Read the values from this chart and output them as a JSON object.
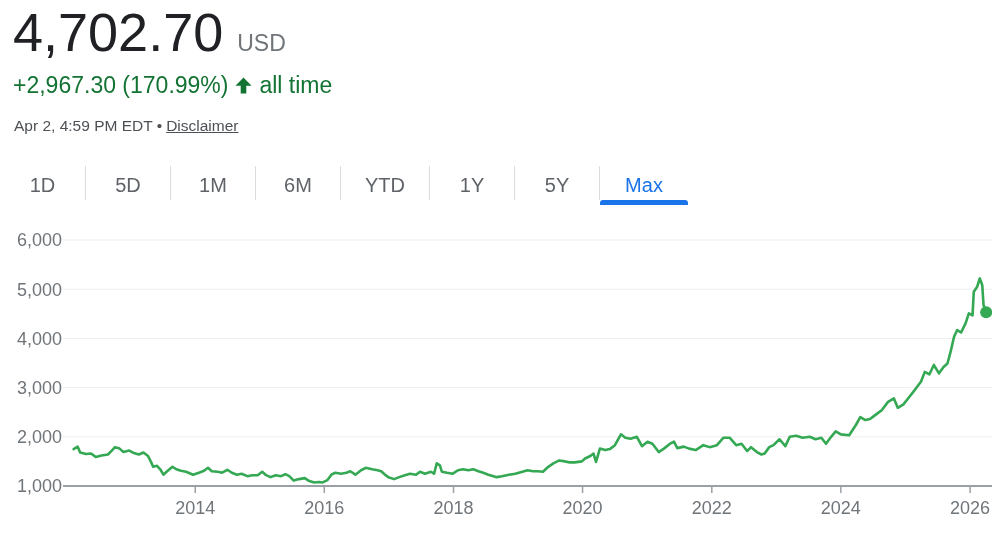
{
  "chart_data": {
    "type": "line",
    "title": "4,702.70",
    "subtitle": "+2,967.30 (170.99%)",
    "annotations": [
      "USD",
      "all time",
      "Apr 2, 4:59 PM EDT •",
      "Disclaimer",
      "1D",
      "5D",
      "1M",
      "6M",
      "YTD",
      "1Y",
      "5Y",
      "Max"
    ],
    "x": [
      "2012-02-13",
      "2012-03-07",
      "2012-03-21",
      "2012-04-23",
      "2012-05-22",
      "2012-06-17",
      "2012-07-20",
      "2012-08-25",
      "2012-09-16",
      "2012-10-04",
      "2012-10-30",
      "2012-11-21",
      "2012-12-24",
      "2013-01-19",
      "2013-02-16",
      "2013-03-14",
      "2013-04-09",
      "2013-04-27",
      "2013-05-08",
      "2013-05-30",
      "2013-06-17",
      "2013-07-05",
      "2013-07-23",
      "2013-08-25",
      "2013-09-16",
      "2013-10-12",
      "2013-11-10",
      "2013-12-20",
      "2014-01-22",
      "2014-02-20",
      "2014-03-14",
      "2014-04-05",
      "2014-05-08",
      "2014-06-02",
      "2014-07-02",
      "2014-07-27",
      "2014-08-25",
      "2014-09-20",
      "2014-10-23",
      "2014-11-21",
      "2014-12-20",
      "2015-01-15",
      "2015-02-06",
      "2015-03-03",
      "2015-04-01",
      "2015-05-01",
      "2015-05-26",
      "2015-06-17",
      "2015-07-12",
      "2015-08-11",
      "2015-09-13",
      "2015-10-08",
      "2015-11-06",
      "2015-12-02",
      "2015-12-20",
      "2016-01-19",
      "2016-02-10",
      "2016-03-03",
      "2016-04-05",
      "2016-05-05",
      "2016-05-27",
      "2016-06-25",
      "2016-07-27",
      "2016-08-22",
      "2016-09-28",
      "2016-10-28",
      "2016-11-18",
      "2016-12-10",
      "2016-12-28",
      "2017-01-30",
      "2017-02-28",
      "2017-04-01",
      "2017-04-30",
      "2017-06-03",
      "2017-06-25",
      "2017-07-24",
      "2017-08-26",
      "2017-09-13",
      "2017-09-28",
      "2017-10-16",
      "2017-10-27",
      "2017-11-25",
      "2017-12-28",
      "2018-01-26",
      "2018-02-24",
      "2018-03-26",
      "2018-04-23",
      "2018-05-22",
      "2018-06-18",
      "2018-07-17",
      "2018-08-15",
      "2018-09-02",
      "2018-10-02",
      "2018-11-10",
      "2018-12-16",
      "2019-01-26",
      "2019-02-24",
      "2019-03-26",
      "2019-04-23",
      "2019-05-22",
      "2019-06-21",
      "2019-07-20",
      "2019-08-22",
      "2019-09-24",
      "2019-10-20",
      "2019-11-18",
      "2019-12-28",
      "2020-01-15",
      "2020-02-14",
      "2020-03-03",
      "2020-03-17",
      "2020-04-08",
      "2020-05-08",
      "2020-06-03",
      "2020-07-02",
      "2020-08-05",
      "2020-08-30",
      "2020-09-28",
      "2020-11-03",
      "2020-12-02",
      "2021-01-02",
      "2021-01-30",
      "2021-03-07",
      "2021-04-05",
      "2021-05-10",
      "2021-06-01",
      "2021-06-20",
      "2021-07-27",
      "2021-08-25",
      "2021-10-02",
      "2021-11-14",
      "2021-12-20",
      "2022-01-30",
      "2022-03-07",
      "2022-04-13",
      "2022-05-19",
      "2022-06-18",
      "2022-07-20",
      "2022-08-11",
      "2022-09-13",
      "2022-10-09",
      "2022-10-27",
      "2022-11-22",
      "2022-12-16",
      "2023-01-19",
      "2023-02-21",
      "2023-03-18",
      "2023-04-23",
      "2023-05-30",
      "2023-07-09",
      "2023-08-11",
      "2023-09-13",
      "2023-10-09",
      "2023-11-07",
      "2023-12-03",
      "2024-01-01",
      "2024-02-17",
      "2024-03-26",
      "2024-04-20",
      "2024-05-19",
      "2024-06-14",
      "2024-07-13",
      "2024-08-19",
      "2024-09-24",
      "2024-10-27",
      "2024-11-18",
      "2024-12-20",
      "2025-01-22",
      "2025-02-28",
      "2025-03-29",
      "2025-04-20",
      "2025-05-16",
      "2025-06-10",
      "2025-07-09",
      "2025-08-04",
      "2025-08-26",
      "2025-09-13",
      "2025-10-02",
      "2025-10-20",
      "2025-11-11",
      "2025-12-07",
      "2025-12-25",
      "2026-01-15",
      "2026-01-22",
      "2026-02-10",
      "2026-02-25",
      "2026-03-11",
      "2026-03-18",
      "2026-04-02"
    ],
    "series": [
      {
        "color": "#34a853",
        "values": [
          1750,
          1800,
          1680,
          1650,
          1660,
          1590,
          1620,
          1640,
          1720,
          1790,
          1760,
          1690,
          1720,
          1670,
          1640,
          1680,
          1610,
          1480,
          1390,
          1410,
          1340,
          1230,
          1290,
          1390,
          1340,
          1310,
          1290,
          1230,
          1270,
          1310,
          1370,
          1300,
          1290,
          1270,
          1330,
          1270,
          1230,
          1250,
          1200,
          1220,
          1220,
          1290,
          1220,
          1180,
          1220,
          1200,
          1240,
          1200,
          1110,
          1140,
          1160,
          1100,
          1070,
          1080,
          1070,
          1120,
          1230,
          1270,
          1250,
          1270,
          1300,
          1230,
          1320,
          1370,
          1340,
          1320,
          1300,
          1230,
          1180,
          1140,
          1180,
          1220,
          1250,
          1230,
          1290,
          1250,
          1290,
          1250,
          1460,
          1420,
          1290,
          1270,
          1250,
          1320,
          1340,
          1320,
          1340,
          1300,
          1270,
          1230,
          1200,
          1180,
          1200,
          1230,
          1250,
          1290,
          1320,
          1300,
          1300,
          1290,
          1390,
          1460,
          1520,
          1500,
          1480,
          1480,
          1500,
          1560,
          1610,
          1660,
          1490,
          1760,
          1730,
          1750,
          1830,
          2050,
          1980,
          1960,
          2000,
          1810,
          1900,
          1860,
          1690,
          1760,
          1860,
          1900,
          1770,
          1800,
          1760,
          1730,
          1830,
          1790,
          1830,
          1980,
          1980,
          1830,
          1860,
          1710,
          1790,
          1690,
          1640,
          1660,
          1790,
          1830,
          1950,
          1810,
          2000,
          2020,
          1980,
          2000,
          1950,
          1980,
          1860,
          2000,
          2110,
          2050,
          2030,
          2240,
          2400,
          2340,
          2360,
          2440,
          2540,
          2710,
          2780,
          2590,
          2660,
          2810,
          2980,
          3120,
          3320,
          3270,
          3460,
          3290,
          3420,
          3490,
          3730,
          4030,
          4170,
          4120,
          4310,
          4510,
          4470,
          4950,
          5050,
          5220,
          5080,
          4680,
          4530
        ]
      },
      {
        "type": "scatter",
        "x": [
          "2026-04-02"
        ],
        "values": [
          4530
        ],
        "color": "#34a853",
        "marker": "circle"
      }
    ],
    "xlim": [
      "2011-12-15",
      "2026-05-05"
    ],
    "xticks": [
      "2014",
      "2016",
      "2018",
      "2020",
      "2022",
      "2024",
      "2026"
    ],
    "ylim": [
      1000,
      6000
    ],
    "yticks": [
      {
        "value": 1000,
        "label": "1,000"
      },
      {
        "value": 2000,
        "label": "2,000"
      },
      {
        "value": 3000,
        "label": "3,000"
      },
      {
        "value": 4000,
        "label": "4,000"
      },
      {
        "value": 5000,
        "label": "5,000"
      },
      {
        "value": 6000,
        "label": "6,000"
      }
    ],
    "grid": "y"
  }
}
